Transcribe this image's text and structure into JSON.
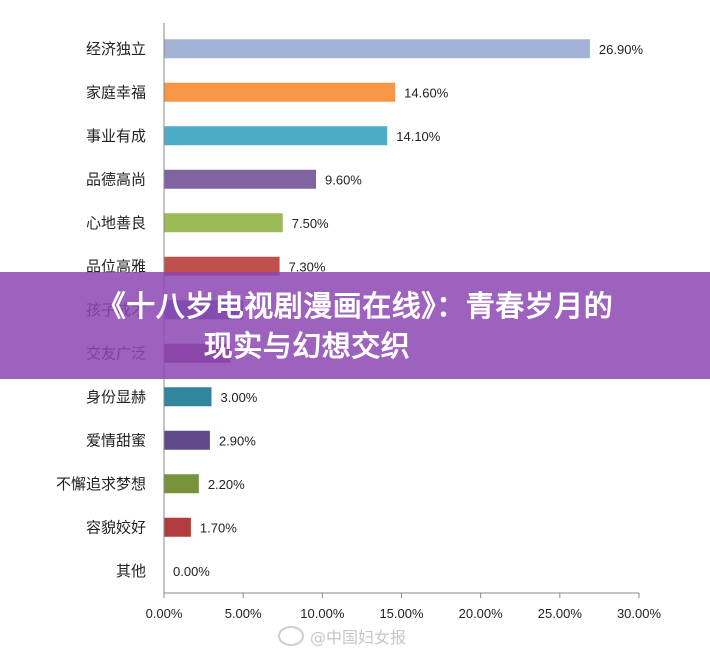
{
  "chart_data": {
    "type": "bar",
    "orientation": "horizontal",
    "categories": [
      "经济独立",
      "家庭幸福",
      "事业有成",
      "品德高尚",
      "心地善良",
      "品位高雅",
      "孩子成才",
      "交友广泛",
      "身份显赫",
      "爱情甜蜜",
      "不懈追求梦想",
      "容貌姣好",
      "其他"
    ],
    "values": [
      26.9,
      14.6,
      14.1,
      9.6,
      7.5,
      7.3,
      5.0,
      4.2,
      3.0,
      2.9,
      2.2,
      1.7,
      0.0
    ],
    "value_labels": [
      "26.90%",
      "14.60%",
      "14.10%",
      "9.60%",
      "7.50%",
      "7.30%",
      "",
      "",
      "3.00%",
      "2.90%",
      "2.20%",
      "1.70%",
      "0.00%"
    ],
    "colors": [
      "#A3B3D6",
      "#F79646",
      "#4BACC6",
      "#8064A2",
      "#9BBB59",
      "#C0504D",
      "#4A66AC",
      "#8E3B74",
      "#31859C",
      "#5F4B8B",
      "#77933C",
      "#B23C3C",
      "#A3B3D6"
    ],
    "xlim": [
      0,
      30
    ],
    "x_ticks": [
      "0.00%",
      "5.00%",
      "10.00%",
      "15.00%",
      "20.00%",
      "25.00%",
      "30.00%"
    ],
    "grid": false,
    "legend": "none"
  },
  "banner": {
    "line1": "《十八岁电视剧漫画在线》：青春岁月的",
    "line2": "现实与幻想交织"
  },
  "watermark": {
    "text": "@中国妇女报"
  }
}
